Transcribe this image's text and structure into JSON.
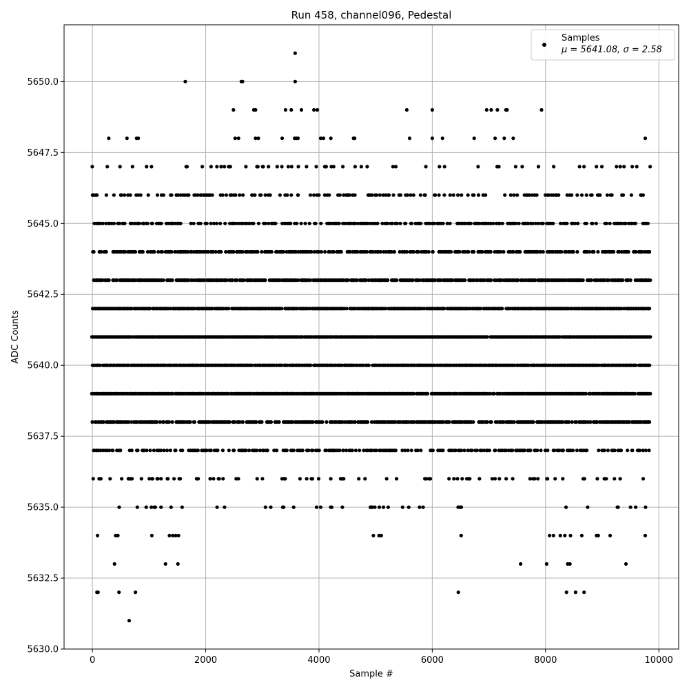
{
  "chart_data": {
    "type": "scatter",
    "title": "Run 458, channel096, Pedestal",
    "xlabel": "Sample #",
    "ylabel": "ADC Counts",
    "xlim": [
      -500,
      10350
    ],
    "ylim": [
      5630.0,
      5652.0
    ],
    "xticks": [
      0,
      2000,
      4000,
      6000,
      8000,
      10000
    ],
    "xtick_labels": [
      "0",
      "2000",
      "4000",
      "6000",
      "8000",
      "10000"
    ],
    "yticks": [
      5630.0,
      5632.5,
      5635.0,
      5637.5,
      5640.0,
      5642.5,
      5645.0,
      5647.5,
      5650.0
    ],
    "ytick_labels": [
      "5630.0",
      "5632.5",
      "5635.0",
      "5637.5",
      "5640.0",
      "5642.5",
      "5645.0",
      "5647.5",
      "5650.0"
    ],
    "grid": true,
    "legend": {
      "placement": "top-right",
      "entry_name": "Samples",
      "entry_stats": "μ = 5641.08, σ = 2.58"
    },
    "marker_color": "#000000",
    "x_range_of_samples": [
      0,
      9840
    ],
    "series": [
      {
        "name": "Samples",
        "level_density": [
          {
            "y": 5641,
            "density": 0.95
          },
          {
            "y": 5640,
            "density": 0.93
          },
          {
            "y": 5642,
            "density": 0.92
          },
          {
            "y": 5639,
            "density": 0.9
          },
          {
            "y": 5643,
            "density": 0.8
          },
          {
            "y": 5638,
            "density": 0.78
          },
          {
            "y": 5644,
            "density": 0.62
          },
          {
            "y": 5645,
            "density": 0.48
          },
          {
            "y": 5637,
            "density": 0.5
          },
          {
            "y": 5646,
            "density": 0.28
          },
          {
            "y": 5636,
            "density": 0.2
          },
          {
            "y": 5647,
            "density": 0.12
          },
          {
            "y": 5635,
            "density": 0.06
          }
        ],
        "sparse_points": [
          [
            650,
            5631
          ],
          [
            80,
            5632
          ],
          [
            100,
            5632
          ],
          [
            470,
            5632
          ],
          [
            760,
            5632
          ],
          [
            6460,
            5632
          ],
          [
            8370,
            5632
          ],
          [
            8530,
            5632
          ],
          [
            8680,
            5632
          ],
          [
            390,
            5633
          ],
          [
            1290,
            5633
          ],
          [
            1510,
            5633
          ],
          [
            7560,
            5633
          ],
          [
            8020,
            5633
          ],
          [
            8390,
            5633
          ],
          [
            8430,
            5633
          ],
          [
            9420,
            5633
          ],
          [
            90,
            5634
          ],
          [
            410,
            5634
          ],
          [
            450,
            5634
          ],
          [
            1050,
            5634
          ],
          [
            1360,
            5634
          ],
          [
            1420,
            5634
          ],
          [
            1470,
            5634
          ],
          [
            1520,
            5634
          ],
          [
            4960,
            5634
          ],
          [
            5060,
            5634
          ],
          [
            5100,
            5634
          ],
          [
            6510,
            5634
          ],
          [
            8070,
            5634
          ],
          [
            8140,
            5634
          ],
          [
            8260,
            5634
          ],
          [
            8340,
            5634
          ],
          [
            8440,
            5634
          ],
          [
            8640,
            5634
          ],
          [
            8900,
            5634
          ],
          [
            8930,
            5634
          ],
          [
            9140,
            5634
          ],
          [
            9760,
            5634
          ],
          [
            290,
            5648
          ],
          [
            610,
            5648
          ],
          [
            780,
            5648
          ],
          [
            810,
            5648
          ],
          [
            2520,
            5648
          ],
          [
            2580,
            5648
          ],
          [
            2880,
            5648
          ],
          [
            2930,
            5648
          ],
          [
            3350,
            5648
          ],
          [
            3570,
            5648
          ],
          [
            3600,
            5648
          ],
          [
            3630,
            5648
          ],
          [
            4030,
            5648
          ],
          [
            4080,
            5648
          ],
          [
            4210,
            5648
          ],
          [
            4610,
            5648
          ],
          [
            4630,
            5648
          ],
          [
            5600,
            5648
          ],
          [
            6000,
            5648
          ],
          [
            6180,
            5648
          ],
          [
            6740,
            5648
          ],
          [
            7110,
            5648
          ],
          [
            7270,
            5648
          ],
          [
            7430,
            5648
          ],
          [
            9760,
            5648
          ],
          [
            2490,
            5649
          ],
          [
            2850,
            5649
          ],
          [
            2880,
            5649
          ],
          [
            3410,
            5649
          ],
          [
            3510,
            5649
          ],
          [
            3690,
            5649
          ],
          [
            3910,
            5649
          ],
          [
            3970,
            5649
          ],
          [
            5550,
            5649
          ],
          [
            6000,
            5649
          ],
          [
            6960,
            5649
          ],
          [
            7040,
            5649
          ],
          [
            7150,
            5649
          ],
          [
            7300,
            5649
          ],
          [
            7320,
            5649
          ],
          [
            7930,
            5649
          ],
          [
            1640,
            5650
          ],
          [
            2630,
            5650
          ],
          [
            2650,
            5650
          ],
          [
            3580,
            5650
          ],
          [
            3580,
            5651
          ]
        ]
      }
    ]
  }
}
